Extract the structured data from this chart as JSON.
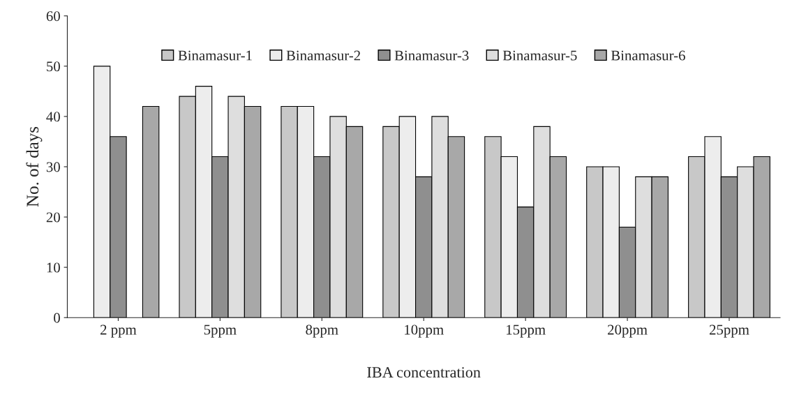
{
  "chart_data": {
    "type": "bar",
    "xlabel": "IBA concentration",
    "ylabel": "No. of days",
    "categories": [
      "2 ppm",
      "5ppm",
      "8ppm",
      "10ppm",
      "15ppm",
      "20ppm",
      "25ppm"
    ],
    "series": [
      {
        "name": "Binamasur-1",
        "color": "#c8c8c8",
        "values": [
          null,
          44,
          42,
          38,
          36,
          30,
          32
        ]
      },
      {
        "name": "Binamasur-2",
        "color": "#ededed",
        "values": [
          50,
          46,
          42,
          40,
          32,
          30,
          36
        ]
      },
      {
        "name": "Binamasur-3",
        "color": "#8f8f8f",
        "values": [
          36,
          32,
          32,
          28,
          22,
          18,
          28
        ]
      },
      {
        "name": "Binamasur-5",
        "color": "#dedede",
        "values": [
          null,
          44,
          40,
          40,
          38,
          28,
          30
        ]
      },
      {
        "name": "Binamasur-6",
        "color": "#a8a8a8",
        "values": [
          42,
          42,
          38,
          36,
          32,
          28,
          32
        ]
      }
    ],
    "ylim": [
      0,
      60
    ],
    "yticks": [
      0,
      10,
      20,
      30,
      40,
      50,
      60
    ],
    "grid": false,
    "legend": "top"
  }
}
